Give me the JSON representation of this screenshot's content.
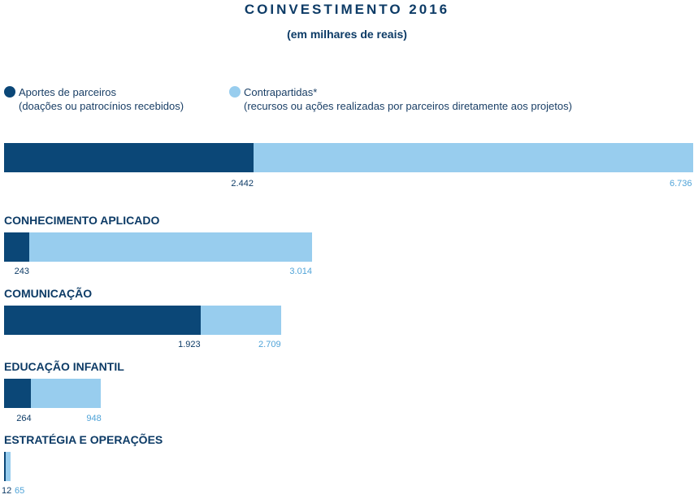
{
  "title": "COINVESTIMENTO 2016",
  "subtitle": "(em milhares de reais)",
  "colors": {
    "aportes": "#0b4777",
    "contrapartidas": "#98cdee",
    "text": "#0d3b66",
    "light_text": "#4fa3d8"
  },
  "legend": [
    {
      "label": "Aportes de parceiros",
      "sublabel": "(doações ou patrocínios recebidos)"
    },
    {
      "label": "Contrapartidas*",
      "sublabel": "(recursos ou ações realizadas por parceiros diretamente aos projetos)"
    }
  ],
  "chart_data": {
    "type": "bar",
    "orientation": "horizontal",
    "stacked": true,
    "title": "COINVESTIMENTO 2016",
    "subtitle": "(em milhares de reais)",
    "categories": [
      "",
      "CONHECIMENTO APLICADO",
      "COMUNICAÇÃO",
      "EDUCAÇÃO INFANTIL",
      "ESTRATÉGIA E OPERAÇÕES"
    ],
    "series": [
      {
        "name": "Aportes de parceiros",
        "values": [
          2442,
          243,
          1923,
          264,
          12
        ],
        "labels": [
          "2.442",
          "243",
          "1.923",
          "264",
          "12"
        ]
      },
      {
        "name": "Contrapartidas*",
        "values": [
          6736,
          3014,
          2709,
          948,
          65
        ],
        "labels": [
          "6.736",
          "3.014",
          "2.709",
          "948",
          "65"
        ]
      }
    ],
    "legend_position": "top-left",
    "grid": false
  }
}
